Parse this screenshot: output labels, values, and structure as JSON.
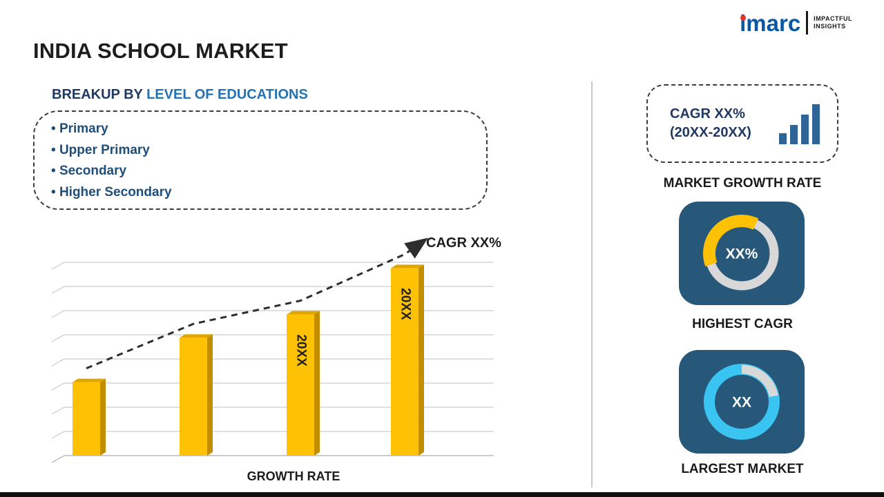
{
  "header": {
    "title": "INDIA SCHOOL MARKET",
    "logo": {
      "brand": "imarc",
      "tagline_line1": "IMPACTFUL",
      "tagline_line2": "INSIGHTS"
    }
  },
  "left": {
    "subtitle_prefix": "BREAKUP BY ",
    "subtitle_highlight": "LEVEL OF EDUCATIONS",
    "breakup_items": [
      "Primary",
      "Upper Primary",
      "Secondary",
      "Higher Secondary"
    ],
    "cagr_annotation": "CAGR XX%",
    "xaxis_label": "GROWTH RATE"
  },
  "right": {
    "cagr_box_line1": "CAGR XX%",
    "cagr_box_line2": "(20XX-20XX)",
    "market_growth_label": "MARKET GROWTH RATE",
    "highest_cagr": {
      "value": "XX%",
      "label": "HIGHEST CAGR"
    },
    "largest_market": {
      "value": "XX",
      "label": "LARGEST MARKET"
    }
  },
  "colors": {
    "accent_yellow": "#FFC103",
    "bar_top": "#DFA600",
    "bar_side": "#C28E00",
    "grid_line": "#BFBFBF",
    "trend_line": "#2E2E2E",
    "card_bg": "#27587A",
    "donut_gray": "#D8D8D8",
    "cyan": "#3AC4F2",
    "icon_blue": "#2E6497",
    "brand_blue": "#0A57A4",
    "brand_red": "#E63329",
    "navy_text": "#203864",
    "blue_heading": "#2272B5",
    "bullet_text": "#1F4E79"
  },
  "chart_data": {
    "type": "bar",
    "title": "INDIA SCHOOL MARKET - GROWTH RATE",
    "categories": [
      "",
      "",
      "20XX",
      "20XX"
    ],
    "values": [
      38,
      61,
      73,
      97
    ],
    "bar_labels": [
      "",
      "",
      "20XX",
      "20XX"
    ],
    "xlabel": "GROWTH RATE",
    "ylabel": "",
    "ylim": [
      0,
      100
    ],
    "grid": true,
    "legend": false,
    "bar_color": "#FFC103",
    "trend": {
      "annotation": "CAGR XX%",
      "style": "dashed-arrow-ascending"
    }
  }
}
